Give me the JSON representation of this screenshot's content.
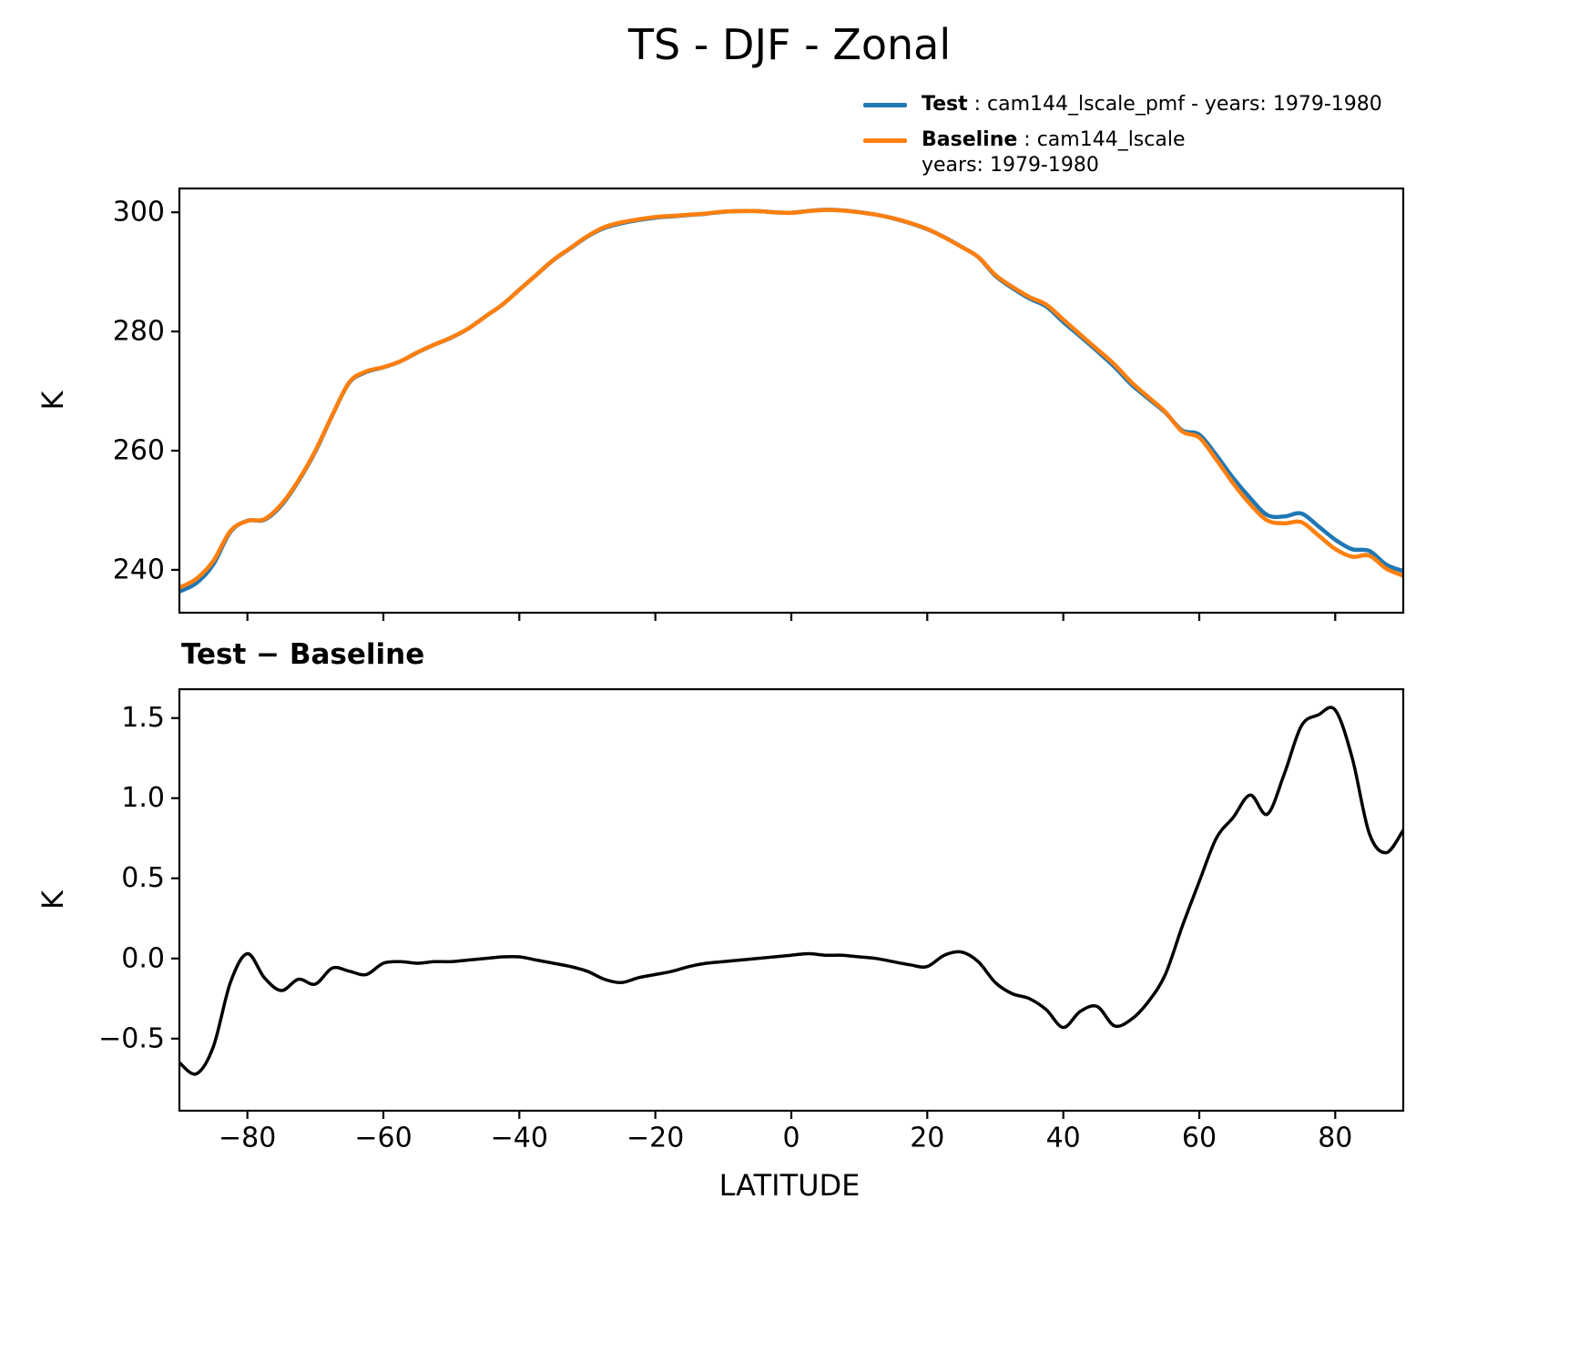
{
  "title": "TS - DJF - Zonal",
  "legend": {
    "test_bold": "Test",
    "test_rest": " : cam144_lscale_pmf - years: 1979-1980",
    "baseline_bold": "Baseline",
    "baseline_rest": " : cam144_lscale",
    "baseline_line2": "years: 1979-1980"
  },
  "colors": {
    "test": "#1f77b4",
    "baseline": "#ff7f0e",
    "diff": "#000000"
  },
  "chart_data": [
    {
      "type": "line",
      "title": "",
      "xlabel": "",
      "ylabel": "K",
      "xlim": [
        -90,
        90
      ],
      "ylim": [
        232.8,
        304
      ],
      "grid": false,
      "legend_position": "above-right",
      "xticks": [
        -80,
        -60,
        -40,
        -20,
        0,
        20,
        40,
        60,
        80
      ],
      "xtick_labels": [
        "−80",
        "−60",
        "−40",
        "−20",
        "0",
        "20",
        "40",
        "60",
        "80"
      ],
      "yticks": [
        240,
        260,
        280,
        300
      ],
      "ytick_labels": [
        "240",
        "260",
        "280",
        "300"
      ],
      "x": [
        -90,
        -87.5,
        -85,
        -82.5,
        -80,
        -77.5,
        -75,
        -72.5,
        -70,
        -67.5,
        -65,
        -62.5,
        -60,
        -57.5,
        -55,
        -52.5,
        -50,
        -47.5,
        -45,
        -42.5,
        -40,
        -37.5,
        -35,
        -32.5,
        -30,
        -27.5,
        -25,
        -22.5,
        -20,
        -17.5,
        -15,
        -12.5,
        -10,
        -7.5,
        -5,
        -2.5,
        0,
        2.5,
        5,
        7.5,
        10,
        12.5,
        15,
        17.5,
        20,
        22.5,
        25,
        27.5,
        30,
        32.5,
        35,
        37.5,
        40,
        42.5,
        45,
        47.5,
        50,
        52.5,
        55,
        57.5,
        60,
        62.5,
        65,
        67.5,
        70,
        72.5,
        75,
        77.5,
        80,
        82.5,
        85,
        87.5,
        90
      ],
      "series": [
        {
          "name": "Test",
          "color": "#1f77b4",
          "values": [
            236.35,
            237.78,
            240.95,
            246.35,
            248.23,
            248.38,
            250.8,
            254.87,
            259.84,
            265.94,
            271.42,
            273.2,
            273.97,
            274.98,
            276.47,
            277.78,
            278.98,
            280.49,
            282.5,
            284.51,
            287.01,
            289.49,
            291.97,
            293.95,
            295.92,
            297.37,
            298.15,
            298.68,
            299.1,
            299.32,
            299.55,
            299.77,
            300.08,
            300.19,
            300.2,
            300.01,
            299.92,
            300.23,
            300.42,
            300.32,
            300.01,
            299.6,
            298.98,
            298.16,
            297.15,
            295.82,
            294.24,
            292.48,
            289.35,
            287.28,
            285.55,
            284.18,
            281.57,
            279.17,
            276.7,
            274.08,
            271.12,
            268.73,
            266.4,
            263.4,
            262.68,
            259.25,
            255.38,
            252.02,
            249.2,
            248.95,
            249.45,
            247.32,
            245.05,
            243.45,
            243.18,
            240.86,
            239.8
          ]
        },
        {
          "name": "Baseline",
          "color": "#ff7f0e",
          "values": [
            237,
            238.5,
            241.5,
            246.5,
            248.2,
            248.5,
            251,
            255,
            260,
            266,
            271.5,
            273.3,
            274,
            275,
            276.5,
            277.8,
            279,
            280.5,
            282.5,
            284.5,
            287,
            289.5,
            292,
            294,
            296,
            297.5,
            298.3,
            298.8,
            299.2,
            299.4,
            299.6,
            299.8,
            300.1,
            300.2,
            300.2,
            300,
            299.9,
            300.2,
            300.4,
            300.3,
            300,
            299.6,
            299,
            298.2,
            297.2,
            295.8,
            294.2,
            292.5,
            289.5,
            287.5,
            285.8,
            284.5,
            282,
            279.5,
            277,
            274.5,
            271.5,
            269,
            266.5,
            263.2,
            262.2,
            258.5,
            254.5,
            251,
            248.3,
            247.8,
            248,
            245.8,
            243.5,
            242.2,
            242.4,
            240.2,
            239
          ]
        }
      ]
    },
    {
      "type": "line",
      "title": "Test − Baseline",
      "xlabel": "LATITUDE",
      "ylabel": "K",
      "xlim": [
        -90,
        90
      ],
      "ylim": [
        -0.95,
        1.68
      ],
      "grid": false,
      "xticks": [
        -80,
        -60,
        -40,
        -20,
        0,
        20,
        40,
        60,
        80
      ],
      "xtick_labels": [
        "−80",
        "−60",
        "−40",
        "−20",
        "0",
        "20",
        "40",
        "60",
        "80"
      ],
      "yticks": [
        -0.5,
        0,
        0.5,
        1,
        1.5
      ],
      "ytick_labels": [
        "−0.5",
        "0.0",
        "0.5",
        "1.0",
        "1.5"
      ],
      "x": [
        -90,
        -87.5,
        -85,
        -82.5,
        -80,
        -77.5,
        -75,
        -72.5,
        -70,
        -67.5,
        -65,
        -62.5,
        -60,
        -57.5,
        -55,
        -52.5,
        -50,
        -47.5,
        -45,
        -42.5,
        -40,
        -37.5,
        -35,
        -32.5,
        -30,
        -27.5,
        -25,
        -22.5,
        -20,
        -17.5,
        -15,
        -12.5,
        -10,
        -7.5,
        -5,
        -2.5,
        0,
        2.5,
        5,
        7.5,
        10,
        12.5,
        15,
        17.5,
        20,
        22.5,
        25,
        27.5,
        30,
        32.5,
        35,
        37.5,
        40,
        42.5,
        45,
        47.5,
        50,
        52.5,
        55,
        57.5,
        60,
        62.5,
        65,
        67.5,
        70,
        72.5,
        75,
        77.5,
        80,
        82.5,
        85,
        87.5,
        90
      ],
      "series": [
        {
          "name": "Test minus Baseline",
          "color": "#000000",
          "values": [
            -0.65,
            -0.72,
            -0.55,
            -0.15,
            0.03,
            -0.12,
            -0.2,
            -0.13,
            -0.16,
            -0.06,
            -0.08,
            -0.1,
            -0.03,
            -0.02,
            -0.03,
            -0.02,
            -0.02,
            -0.01,
            0,
            0.01,
            0.01,
            -0.01,
            -0.03,
            -0.05,
            -0.08,
            -0.13,
            -0.15,
            -0.12,
            -0.1,
            -0.08,
            -0.05,
            -0.03,
            -0.02,
            -0.01,
            0,
            0.01,
            0.02,
            0.03,
            0.02,
            0.02,
            0.01,
            0,
            -0.02,
            -0.04,
            -0.05,
            0.02,
            0.04,
            -0.02,
            -0.15,
            -0.22,
            -0.25,
            -0.32,
            -0.43,
            -0.33,
            -0.3,
            -0.42,
            -0.38,
            -0.27,
            -0.1,
            0.2,
            0.48,
            0.75,
            0.88,
            1.02,
            0.9,
            1.15,
            1.45,
            1.52,
            1.55,
            1.25,
            0.78,
            0.66,
            0.8
          ]
        }
      ]
    }
  ]
}
